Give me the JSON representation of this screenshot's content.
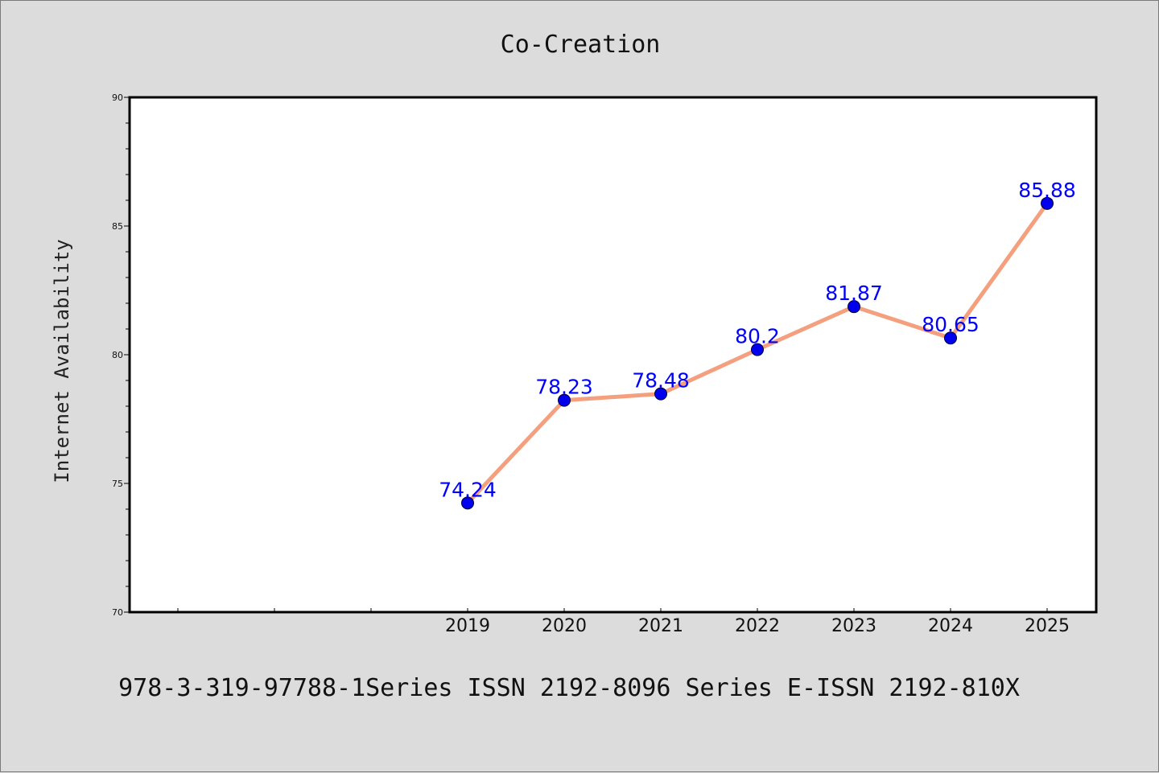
{
  "colors": {
    "background": "#dcdcdc",
    "plot_background": "#ffffff",
    "line": "#f4a07e",
    "marker": "#0000ee",
    "data_label": "#0000ff"
  },
  "footer": "978-3-319-97788-1Series ISSN 2192-8096 Series E-ISSN 2192-810X",
  "chart_data": {
    "type": "line",
    "title": "Co-Creation",
    "xlabel": "",
    "ylabel": "Internet Availability",
    "categories": [
      "2019",
      "2020",
      "2021",
      "2022",
      "2023",
      "2024",
      "2025"
    ],
    "values": [
      74.24,
      78.23,
      78.48,
      80.2,
      81.87,
      80.65,
      85.88
    ],
    "value_labels": [
      "74.24",
      "78.23",
      "78.48",
      "80.2",
      "81.87",
      "80.65",
      "85.88"
    ],
    "ylim": [
      70,
      90
    ],
    "yticks": [
      "70",
      "75",
      "80",
      "85",
      "90"
    ],
    "x_slots_before_first": 3,
    "grid": false,
    "legend": "none"
  }
}
